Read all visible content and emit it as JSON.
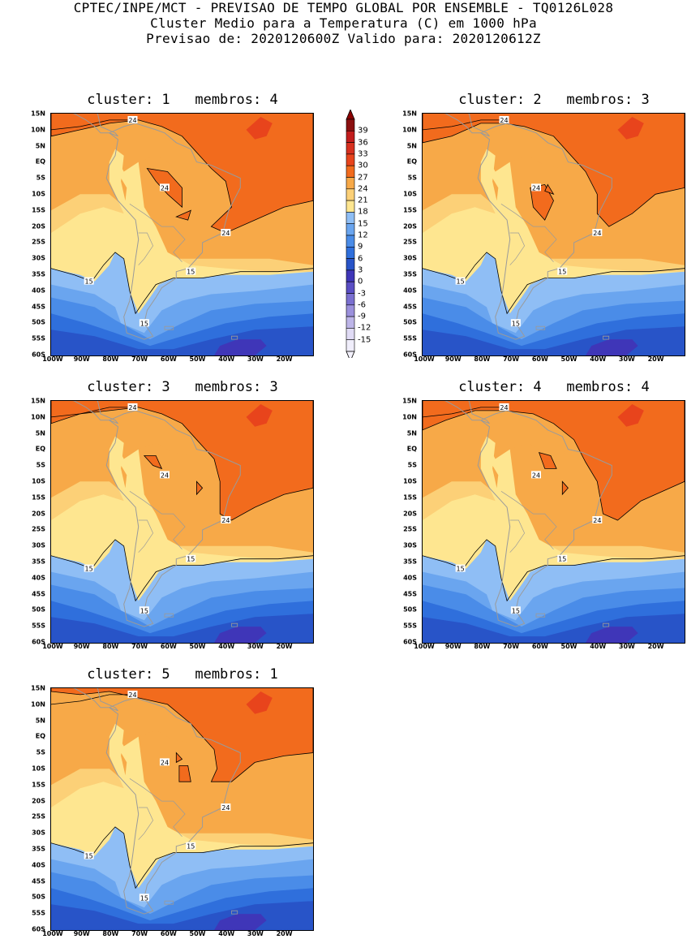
{
  "header": {
    "line1": "CPTEC/INPE/MCT - PREVISAO DE TEMPO GLOBAL POR ENSEMBLE - TQ0126L028",
    "line2": "Cluster Medio para a Temperatura (C) em 1000 hPa",
    "line3": "Previsao de: 2020120600Z   Valido para: 2020120612Z"
  },
  "panels": [
    {
      "title": "cluster: 1   membros: 4"
    },
    {
      "title": "cluster: 2   membros: 3"
    },
    {
      "title": "cluster: 3   membros: 3"
    },
    {
      "title": "cluster: 4   membros: 4"
    },
    {
      "title": "cluster: 5   membros: 1"
    }
  ],
  "lat_ticks": [
    "15N",
    "10N",
    "5N",
    "EQ",
    "5S",
    "10S",
    "15S",
    "20S",
    "25S",
    "30S",
    "35S",
    "40S",
    "45S",
    "50S",
    "55S",
    "60S"
  ],
  "lon_ticks": [
    "100W",
    "90W",
    "80W",
    "70W",
    "60W",
    "50W",
    "40W",
    "30W",
    "20W"
  ],
  "contour_labels": {
    "warm": "24",
    "cool": "15"
  },
  "colorbar": {
    "labels": [
      "39",
      "36",
      "33",
      "30",
      "27",
      "24",
      "21",
      "18",
      "15",
      "12",
      "9",
      "6",
      "3",
      "0",
      "-3",
      "-6",
      "-9",
      "-12",
      "-15"
    ],
    "colors": [
      "#a50f15",
      "#c21d1d",
      "#d7301f",
      "#e8441c",
      "#f26b1d",
      "#f7a948",
      "#fcd077",
      "#fee690",
      "#8fbef5",
      "#6aa5ef",
      "#4a8ce8",
      "#2f6fdc",
      "#2854c8",
      "#3f36b8",
      "#5a4ec4",
      "#7a6fd0",
      "#9b90dc",
      "#bdb5e8",
      "#e0dbf5"
    ]
  }
}
